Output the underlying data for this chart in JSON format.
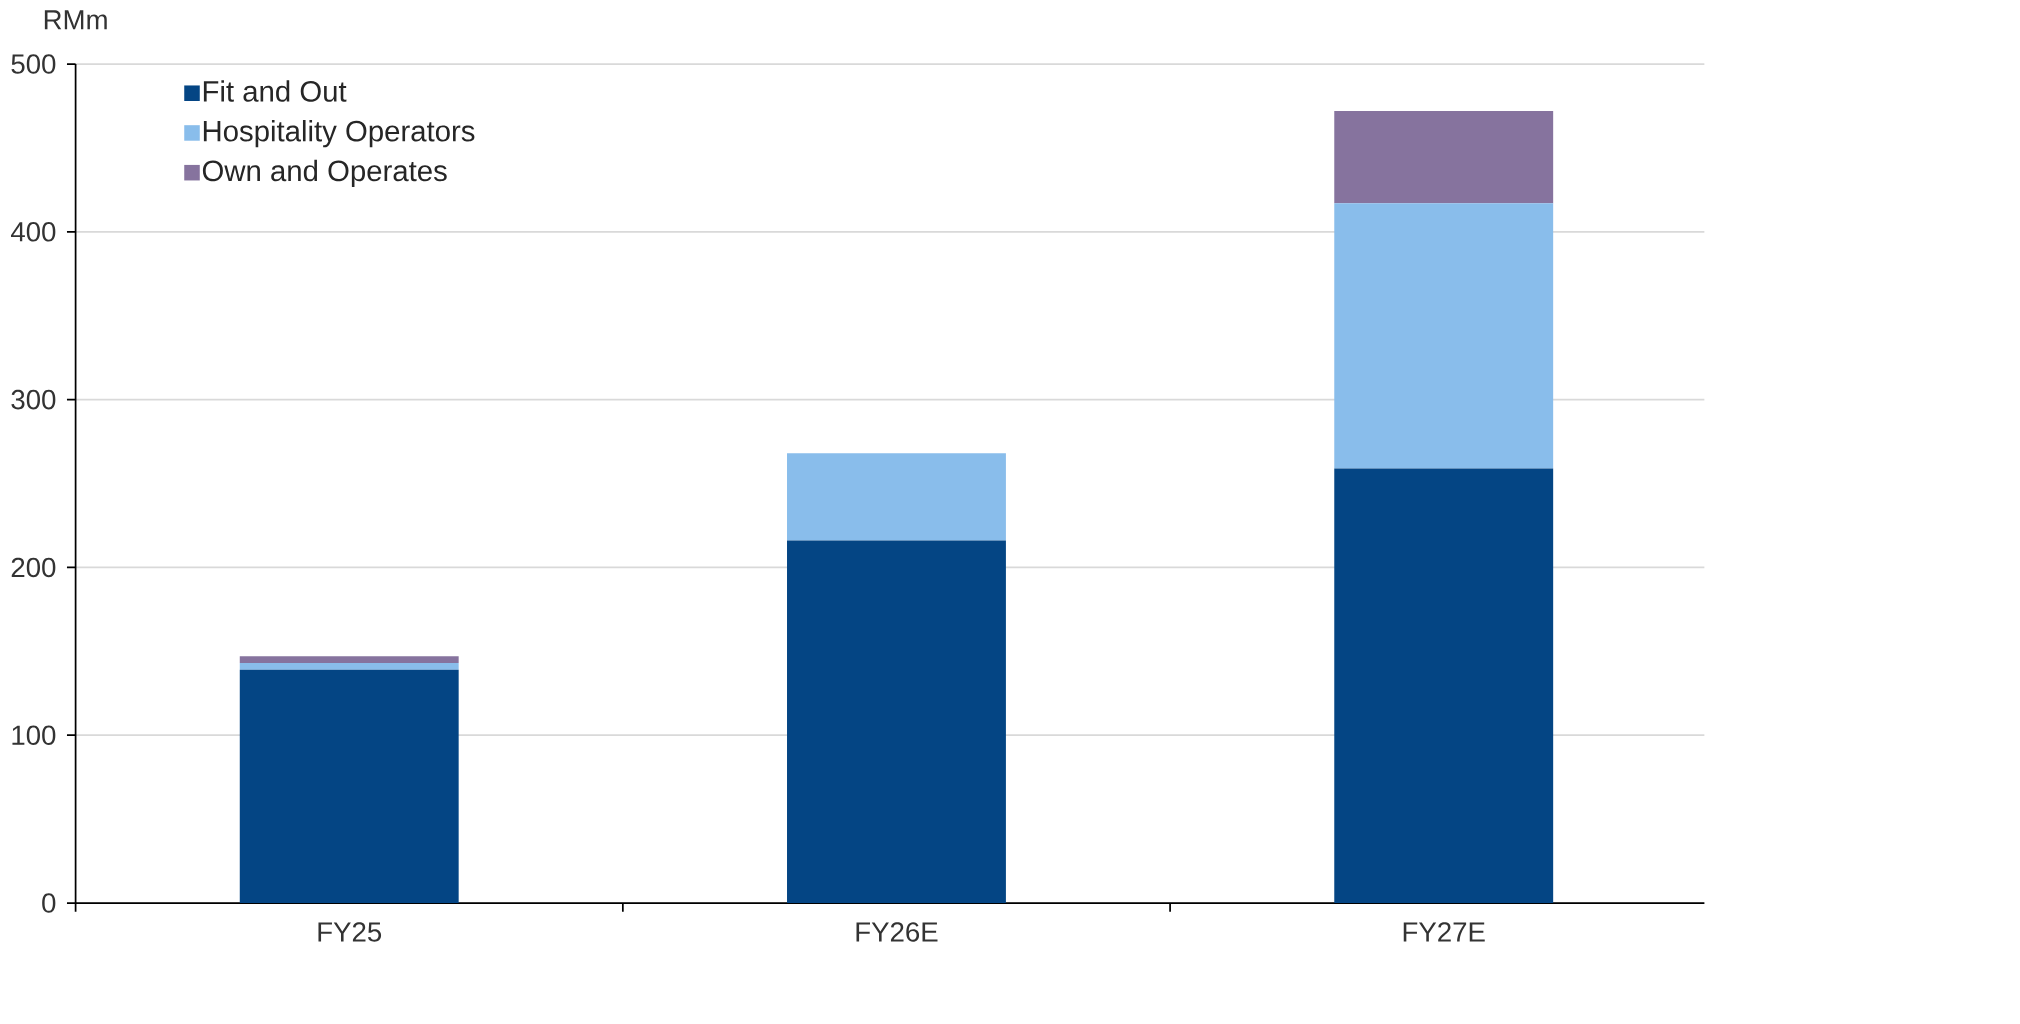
{
  "chart_data": {
    "type": "bar",
    "stacked": true,
    "ylabel": "RMm",
    "categories": [
      "FY25",
      "FY26E",
      "FY27E"
    ],
    "series": [
      {
        "name": "Fit and Out",
        "color": "#044584",
        "values": [
          139,
          216,
          259
        ]
      },
      {
        "name": "Hospitality Operators",
        "color": "#89bdeb",
        "values": [
          4,
          52,
          158
        ]
      },
      {
        "name": "Own and Operates",
        "color": "#86739e",
        "values": [
          4,
          0,
          55
        ]
      }
    ],
    "ylim": [
      0,
      500
    ],
    "yticks": [
      0,
      100,
      200,
      300,
      400,
      500
    ],
    "grid": "y",
    "legend": "top left"
  }
}
